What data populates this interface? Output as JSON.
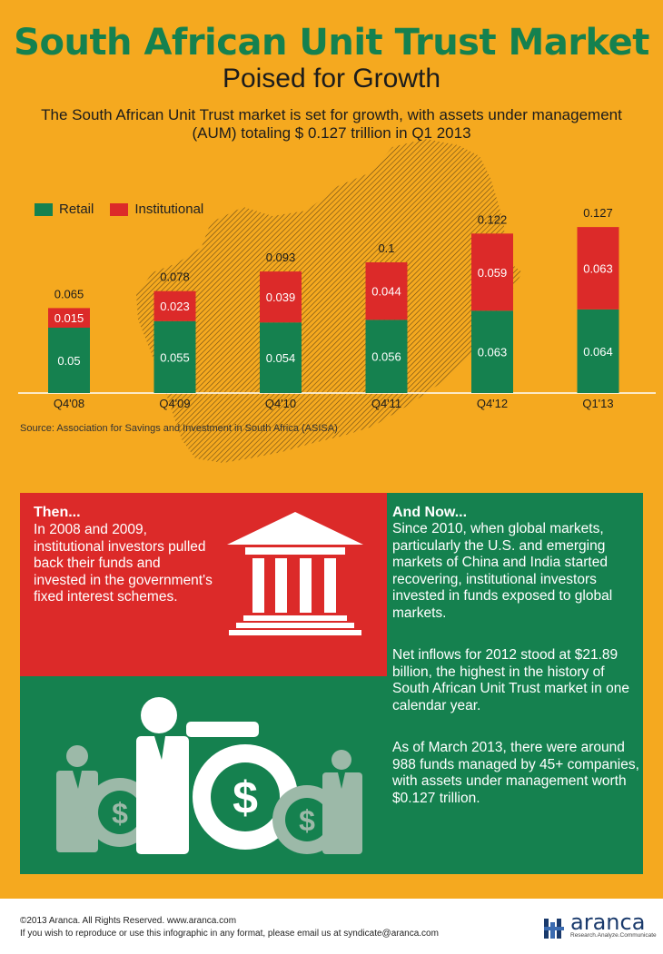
{
  "header": {
    "title": "South African Unit Trust Market",
    "subtitle": "Poised for Growth",
    "intro": "The South African Unit Trust market is set for growth, with assets under management (AUM) totaling $ 0.127 trillion in Q1 2013"
  },
  "colors": {
    "background": "#f5a91f",
    "retail": "#15814f",
    "institutional": "#dc2a29",
    "title": "#15814f"
  },
  "legend": [
    {
      "label": "Retail",
      "color": "#15814f"
    },
    {
      "label": "Institutional",
      "color": "#dc2a29"
    }
  ],
  "chart_data": {
    "type": "bar",
    "stacked": true,
    "categories": [
      "Q4'08",
      "Q4'09",
      "Q4'10",
      "Q4'11",
      "Q4'12",
      "Q1'13"
    ],
    "series": [
      {
        "name": "Retail",
        "values": [
          0.05,
          0.055,
          0.054,
          0.056,
          0.063,
          0.064
        ],
        "labels": [
          "0.05",
          "0.055",
          "0.054",
          "0.056",
          "0.063",
          "0.064"
        ],
        "color": "#15814f"
      },
      {
        "name": "Institutional",
        "values": [
          0.015,
          0.023,
          0.039,
          0.044,
          0.059,
          0.063
        ],
        "labels": [
          "0.015",
          "0.023",
          "0.039",
          "0.044",
          "0.059",
          "0.063"
        ],
        "color": "#dc2a29"
      }
    ],
    "totals": [
      "0.065",
      "0.078",
      "0.093",
      "0.1",
      "0.122",
      "0.127"
    ],
    "ylim": [
      0,
      0.14
    ],
    "legend_position": "top-left"
  },
  "source": "Source: Association for Savings and Investment in South Africa (ASISA)",
  "then": {
    "heading": "Then...",
    "text": "In 2008 and 2009, institutional investors pulled back their funds and invested in the government's fixed interest schemes."
  },
  "now": {
    "heading": "And Now...",
    "paragraphs": [
      "Since 2010, when global markets, particularly the U.S. and emerging markets of China and India started recovering, institutional investors invested in funds exposed to global markets.",
      "Net inflows for 2012 stood at $21.89 billion, the highest in the history of South African Unit Trust market in one calendar year.",
      "As of March 2013, there were around 988 funds managed by 45+ companies, with assets under management worth $0.127 trillion."
    ]
  },
  "icons": {
    "institution": "bank-building-icon",
    "businessman": "businessman-icon",
    "coin": "dollar-coin-icon"
  },
  "footer": {
    "copyright": "©2013 Aranca. All Rights Reserved. www.aranca.com",
    "notice": "If you wish to reproduce or use this infographic in any format, please email us at syndicate@aranca.com",
    "brand": "aranca",
    "tagline": "Research.Analyze.Communicate"
  }
}
